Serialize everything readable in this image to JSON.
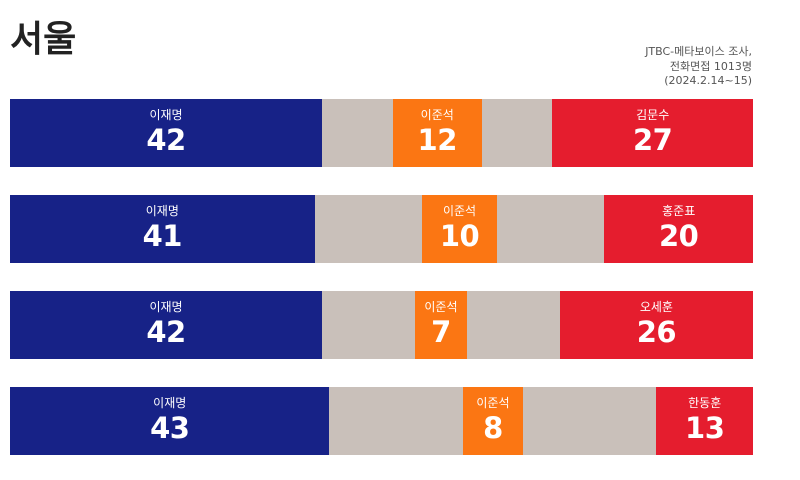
{
  "title": "서울",
  "source": [
    "JTBC-메타보이스 조사,",
    "전화면접 1013명",
    "(2024.2.14~15)"
  ],
  "colors": {
    "p1": "#172287",
    "p2": "#fb7613",
    "p3": "#e51d2e",
    "rest": "#c9c0ba"
  },
  "chart_data": {
    "type": "bar",
    "stacked": true,
    "scale_max": 100,
    "rows": [
      {
        "candidates": [
          {
            "name": "이재명",
            "value": 42
          },
          {
            "name": "이준석",
            "value": 12
          },
          {
            "name": "김문수",
            "value": 27
          }
        ]
      },
      {
        "candidates": [
          {
            "name": "이재명",
            "value": 41
          },
          {
            "name": "이준석",
            "value": 10
          },
          {
            "name": "홍준표",
            "value": 20
          }
        ]
      },
      {
        "candidates": [
          {
            "name": "이재명",
            "value": 42
          },
          {
            "name": "이준석",
            "value": 7
          },
          {
            "name": "오세훈",
            "value": 26
          }
        ]
      },
      {
        "candidates": [
          {
            "name": "이재명",
            "value": 43
          },
          {
            "name": "이준석",
            "value": 8
          },
          {
            "name": "한동훈",
            "value": 13
          }
        ]
      }
    ]
  }
}
